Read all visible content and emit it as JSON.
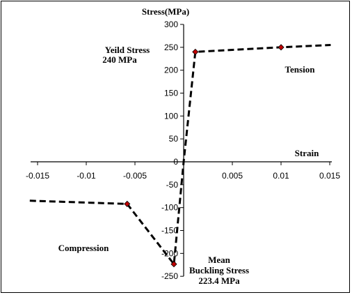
{
  "chart_data": {
    "type": "line",
    "title": "",
    "xlabel": "Strain",
    "ylabel": "Stress(MPa)",
    "xlim": [
      -0.015,
      0.015
    ],
    "ylim": [
      -250,
      300
    ],
    "x_ticks": [
      "-0.015",
      "-0.01",
      "-0.005",
      "0",
      "0.005",
      "0.01",
      "0.015"
    ],
    "x_tick_values": [
      -0.015,
      -0.01,
      -0.005,
      0,
      0.005,
      0.01,
      0.015
    ],
    "y_ticks": [
      "-250",
      "-200",
      "-150",
      "-100",
      "-50",
      "0",
      "50",
      "100",
      "150",
      "200",
      "250",
      "300"
    ],
    "y_tick_values": [
      -250,
      -200,
      -150,
      -100,
      -50,
      0,
      50,
      100,
      150,
      200,
      250,
      300
    ],
    "grid": false,
    "line_color": "#000000",
    "marker_color": "#c00000",
    "series": [
      {
        "x": [
          -0.0158,
          -0.0058,
          -0.001,
          0,
          0.0012,
          0.01,
          0.0151
        ],
        "y": [
          -85,
          -92,
          -223.4,
          0,
          240,
          250,
          255
        ],
        "markers": [
          false,
          true,
          true,
          false,
          true,
          true,
          false
        ]
      }
    ],
    "annotations": {
      "yield_line1": "Yeild Stress",
      "yield_line2": "240 MPa",
      "tension": "Tension",
      "compression": "Compression",
      "buckling_line1": "Mean",
      "buckling_line2": "Buckling Stress",
      "buckling_line3": "223.4 MPa"
    }
  }
}
